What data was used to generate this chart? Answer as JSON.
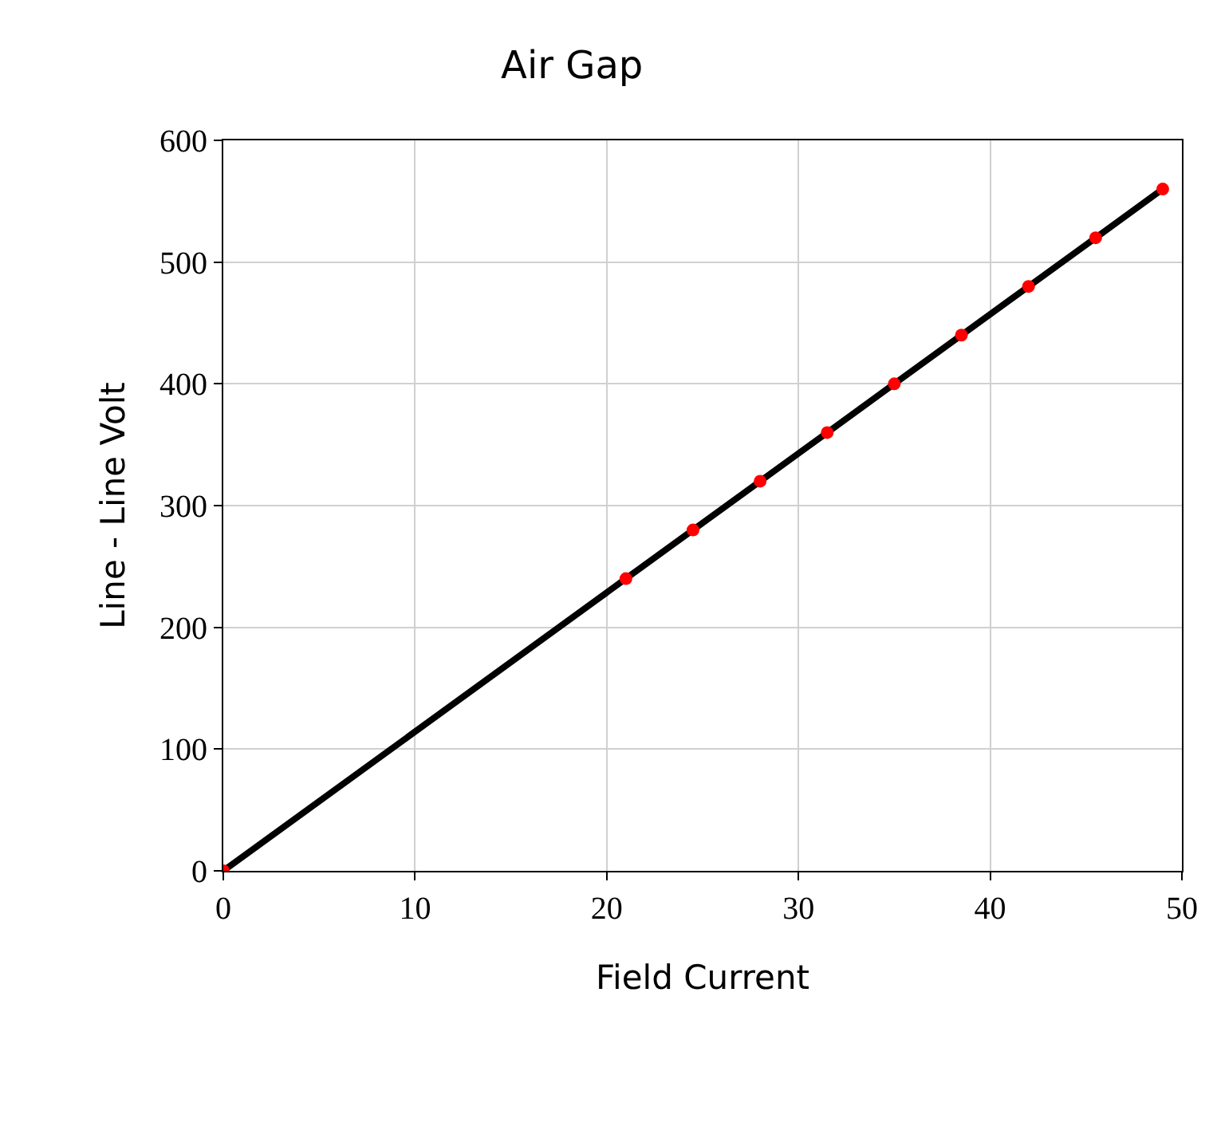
{
  "chart_data": {
    "type": "line",
    "title": "Air Gap",
    "xlabel": "Field Current",
    "ylabel": "Line - Line Volt",
    "xlim": [
      0,
      50
    ],
    "xticks": [
      0,
      10,
      20,
      30,
      40,
      50
    ],
    "ylim": [
      0,
      600
    ],
    "yticks": [
      0,
      100,
      200,
      300,
      400,
      500,
      600
    ],
    "grid": true,
    "marker": "circle",
    "line_style": "solid",
    "series": [
      {
        "color": "#000000",
        "colors": [
          "#ff0000",
          "#ff0000",
          "#ff0000",
          "#ff0000",
          "#ff0000",
          "#ff0000",
          "#ff0000",
          "#ff0000",
          "#ff0000",
          "#ff0000"
        ],
        "x": [
          0,
          21,
          24.5,
          28,
          31.5,
          35,
          38.5,
          42,
          45.5,
          49
        ],
        "values": [
          0,
          240,
          280,
          320,
          360,
          400,
          440,
          480,
          520,
          560
        ]
      }
    ]
  }
}
